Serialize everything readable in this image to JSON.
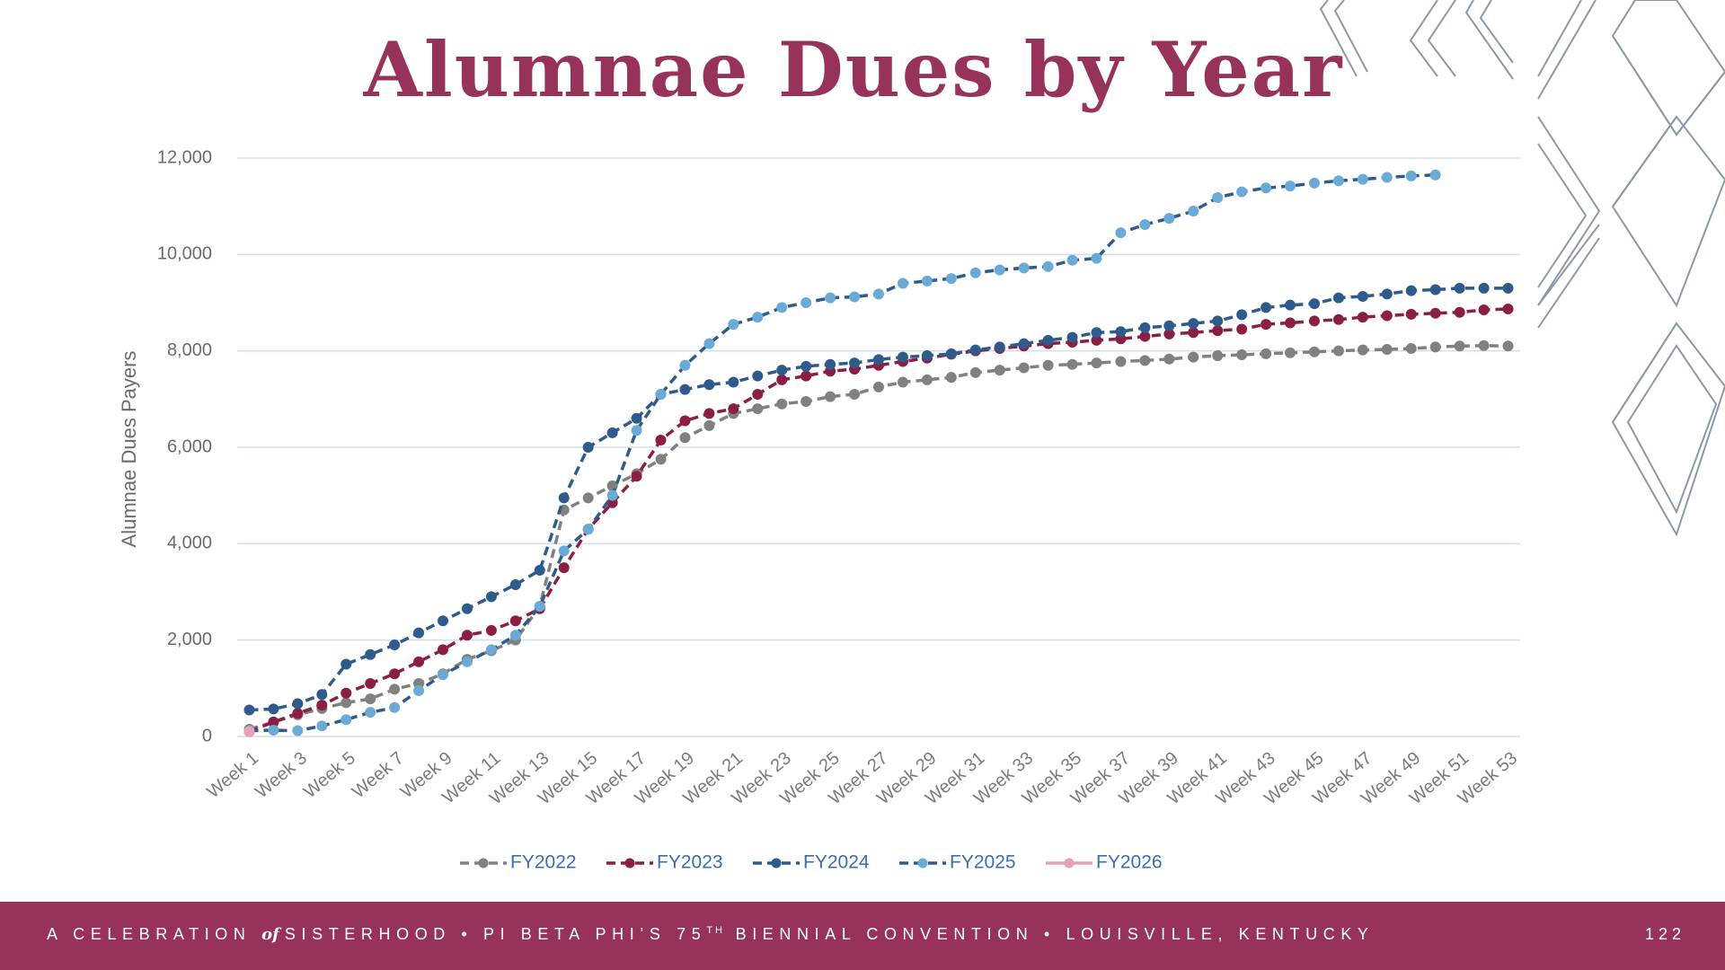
{
  "chart_data": {
    "type": "line",
    "title": "Alumnae Dues by Year",
    "y_label": "Alumnae Dues Payers",
    "categories": [
      "Week 1",
      null,
      "Week 3",
      null,
      "Week 5",
      null,
      "Week 7",
      null,
      "Week 9",
      null,
      "Week 11",
      null,
      "Week 13",
      null,
      "Week 15",
      null,
      "Week 17",
      null,
      "Week 19",
      null,
      "Week 21",
      null,
      "Week 23",
      null,
      "Week 25",
      null,
      "Week 27",
      null,
      "Week 29",
      null,
      "Week 31",
      null,
      "Week 33",
      null,
      "Week 35",
      null,
      "Week 37",
      null,
      "Week 39",
      null,
      "Week 41",
      null,
      "Week 43",
      null,
      "Week 45",
      null,
      "Week 47",
      null,
      "Week 49",
      null,
      "Week 51",
      null,
      "Week 53"
    ],
    "ylim": [
      0,
      12000
    ],
    "yticks": [
      0,
      {
        "value": 2000,
        "label": "2,000"
      },
      {
        "value": 4000,
        "label": "4,000"
      },
      {
        "value": 6000,
        "label": "6,000"
      },
      {
        "value": 8000,
        "label": "8,000"
      },
      {
        "value": 10000,
        "label": "10,000"
      },
      {
        "value": 12000,
        "label": "12,000"
      }
    ],
    "grid": true,
    "legend": "bottom",
    "series": [
      {
        "name": "FY2022",
        "color": "#808080",
        "marker_color": "#808080",
        "dashed": true,
        "values": [
          150,
          300,
          450,
          580,
          700,
          780,
          980,
          1100,
          1300,
          1600,
          1780,
          2000,
          2700,
          4700,
          4950,
          5200,
          5450,
          5750,
          6200,
          6450,
          6700,
          6800,
          6900,
          6950,
          7050,
          7100,
          7250,
          7350,
          7400,
          7450,
          7550,
          7600,
          7650,
          7700,
          7720,
          7750,
          7780,
          7800,
          7830,
          7870,
          7900,
          7920,
          7940,
          7960,
          7980,
          8000,
          8020,
          8030,
          8050,
          8080,
          8100,
          8110,
          8100
        ]
      },
      {
        "name": "FY2023",
        "color": "#8b1e45",
        "marker_color": "#8b1e45",
        "dashed": true,
        "values": [
          100,
          300,
          480,
          650,
          900,
          1100,
          1300,
          1550,
          1800,
          2100,
          2200,
          2400,
          2650,
          3500,
          4300,
          4850,
          5400,
          6150,
          6550,
          6700,
          6800,
          7100,
          7400,
          7480,
          7580,
          7620,
          7700,
          7780,
          7850,
          7930,
          8000,
          8050,
          8100,
          8150,
          8180,
          8220,
          8250,
          8300,
          8350,
          8380,
          8420,
          8450,
          8550,
          8580,
          8620,
          8650,
          8700,
          8730,
          8760,
          8780,
          8800,
          8850,
          8870
        ]
      },
      {
        "name": "FY2024",
        "color": "#2e5b8c",
        "marker_color": "#2e5b8c",
        "dashed": true,
        "values": [
          550,
          570,
          680,
          870,
          1500,
          1700,
          1900,
          2150,
          2400,
          2650,
          2900,
          3150,
          3450,
          4950,
          6000,
          6300,
          6600,
          7100,
          7200,
          7300,
          7350,
          7480,
          7600,
          7680,
          7720,
          7750,
          7820,
          7870,
          7900,
          7940,
          8020,
          8080,
          8150,
          8220,
          8280,
          8380,
          8400,
          8480,
          8520,
          8570,
          8620,
          8750,
          8900,
          8950,
          8980,
          9100,
          9130,
          9180,
          9250,
          9270,
          9300,
          9300,
          9300
        ]
      },
      {
        "name": "FY2025",
        "color": "#2e5b8c",
        "marker_color": "#6aaad6",
        "dashed": true,
        "values": [
          120,
          130,
          120,
          220,
          350,
          500,
          600,
          950,
          1280,
          1550,
          1800,
          2100,
          2700,
          3850,
          4300,
          5000,
          6350,
          7100,
          7700,
          8150,
          8550,
          8700,
          8900,
          9000,
          9100,
          9120,
          9180,
          9400,
          9450,
          9500,
          9620,
          9680,
          9720,
          9750,
          9880,
          9920,
          10450,
          10620,
          10750,
          10900,
          11180,
          11300,
          11380,
          11420,
          11480,
          11530,
          11560,
          11600,
          11630,
          11650,
          null,
          null,
          null
        ]
      },
      {
        "name": "FY2026",
        "color": "#e8a0b4",
        "marker_color": "#e8a0b4",
        "dashed": false,
        "values": [
          100,
          null,
          null,
          null,
          null,
          null,
          null,
          null,
          null,
          null,
          null,
          null,
          null,
          null,
          null,
          null,
          null,
          null,
          null,
          null,
          null,
          null,
          null,
          null,
          null,
          null,
          null,
          null,
          null,
          null,
          null,
          null,
          null,
          null,
          null,
          null,
          null,
          null,
          null,
          null,
          null,
          null,
          null,
          null,
          null,
          null,
          null,
          null,
          null,
          null,
          null,
          null,
          null
        ]
      }
    ]
  },
  "footer": {
    "parts": [
      "A CELEBRATION",
      "of",
      "SISTERHOOD • PI BETA PHI’S 75",
      "TH",
      " BIENNIAL CONVENTION • LOUISVILLE, KENTUCKY"
    ],
    "page": "122"
  }
}
